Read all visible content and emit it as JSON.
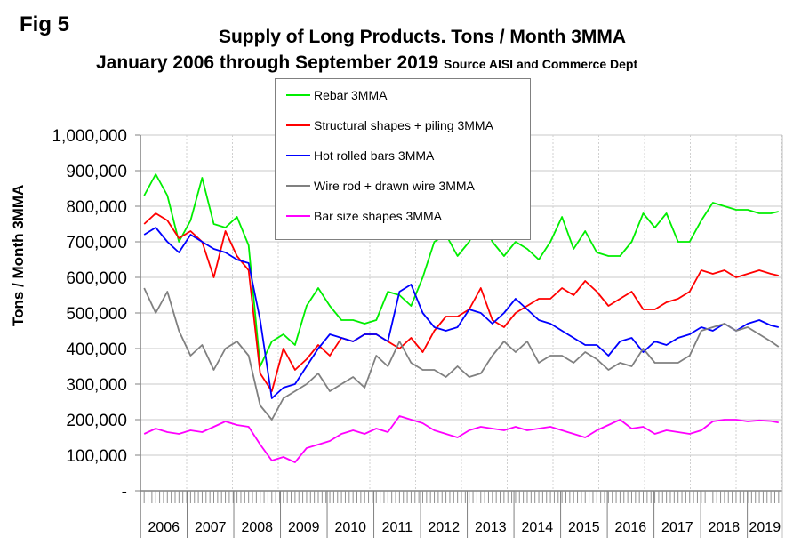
{
  "figure_label": "Fig 5",
  "chart_data": {
    "type": "line",
    "title": "Supply of Long Products. Tons / Month 3MMA",
    "subtitle": "January 2006 through September 2019",
    "source_note": "Source AISI and Commerce Dept",
    "xlabel": "",
    "ylabel": "Tons / Month 3MMA",
    "ylim": [
      0,
      1000000
    ],
    "y_ticks": [
      0,
      100000,
      200000,
      300000,
      400000,
      500000,
      600000,
      700000,
      800000,
      900000,
      1000000
    ],
    "y_tick_labels": [
      "-",
      "100,000",
      "200,000",
      "300,000",
      "400,000",
      "500,000",
      "600,000",
      "700,000",
      "800,000",
      "900,000",
      "1,000,000"
    ],
    "x_start": "2006-01",
    "x_end": "2019-09",
    "x_sample_interval_months": 3,
    "x_month_index": [
      0,
      3,
      6,
      9,
      12,
      15,
      18,
      21,
      24,
      27,
      30,
      33,
      36,
      39,
      42,
      45,
      48,
      51,
      54,
      57,
      60,
      63,
      66,
      69,
      72,
      75,
      78,
      81,
      84,
      87,
      90,
      93,
      96,
      99,
      102,
      105,
      108,
      111,
      114,
      117,
      120,
      123,
      126,
      129,
      132,
      135,
      138,
      141,
      144,
      147,
      150,
      153,
      156,
      159,
      162,
      164
    ],
    "categories": [
      "2006",
      "2007",
      "2008",
      "2009",
      "2010",
      "2011",
      "2012",
      "2013",
      "2014",
      "2015",
      "2016",
      "2017",
      "2018",
      "2019"
    ],
    "grid": true,
    "legend_position": "top-center",
    "series": [
      {
        "name": "Rebar 3MMA",
        "color": "#00ee00",
        "values": [
          830000,
          890000,
          830000,
          700000,
          760000,
          880000,
          750000,
          740000,
          770000,
          690000,
          350000,
          420000,
          440000,
          410000,
          520000,
          570000,
          520000,
          480000,
          480000,
          470000,
          480000,
          560000,
          550000,
          520000,
          600000,
          700000,
          720000,
          660000,
          700000,
          770000,
          700000,
          660000,
          700000,
          680000,
          650000,
          700000,
          770000,
          680000,
          730000,
          670000,
          660000,
          660000,
          700000,
          780000,
          740000,
          780000,
          700000,
          700000,
          760000,
          810000,
          800000,
          790000,
          790000,
          780000,
          780000,
          785000
        ]
      },
      {
        "name": "Structural shapes + piling 3MMA",
        "color": "#ff0000",
        "values": [
          750000,
          780000,
          760000,
          710000,
          730000,
          700000,
          600000,
          730000,
          660000,
          620000,
          330000,
          280000,
          400000,
          340000,
          370000,
          410000,
          380000,
          430000,
          420000,
          440000,
          440000,
          420000,
          400000,
          430000,
          390000,
          450000,
          490000,
          490000,
          510000,
          570000,
          480000,
          460000,
          500000,
          520000,
          540000,
          540000,
          570000,
          550000,
          590000,
          560000,
          520000,
          540000,
          560000,
          510000,
          510000,
          530000,
          540000,
          560000,
          620000,
          610000,
          620000,
          600000,
          610000,
          620000,
          610000,
          605000
        ]
      },
      {
        "name": "Hot rolled bars 3MMA",
        "color": "#0000ff",
        "values": [
          720000,
          740000,
          700000,
          670000,
          720000,
          700000,
          680000,
          670000,
          650000,
          640000,
          480000,
          260000,
          290000,
          300000,
          350000,
          400000,
          440000,
          430000,
          420000,
          440000,
          440000,
          420000,
          560000,
          580000,
          500000,
          460000,
          450000,
          460000,
          510000,
          500000,
          470000,
          500000,
          540000,
          510000,
          480000,
          470000,
          450000,
          430000,
          410000,
          410000,
          380000,
          420000,
          430000,
          390000,
          420000,
          410000,
          430000,
          440000,
          460000,
          450000,
          470000,
          450000,
          470000,
          480000,
          465000,
          460000
        ]
      },
      {
        "name": "Wire rod + drawn wire 3MMA",
        "color": "#808080",
        "values": [
          570000,
          500000,
          560000,
          450000,
          380000,
          410000,
          340000,
          400000,
          420000,
          380000,
          240000,
          200000,
          260000,
          280000,
          300000,
          330000,
          280000,
          300000,
          320000,
          290000,
          380000,
          350000,
          420000,
          360000,
          340000,
          340000,
          320000,
          350000,
          320000,
          330000,
          380000,
          420000,
          390000,
          420000,
          360000,
          380000,
          380000,
          360000,
          390000,
          370000,
          340000,
          360000,
          350000,
          400000,
          360000,
          360000,
          360000,
          380000,
          450000,
          460000,
          470000,
          450000,
          460000,
          440000,
          420000,
          405000
        ]
      },
      {
        "name": "Bar size shapes 3MMA",
        "color": "#ff00ff",
        "values": [
          160000,
          175000,
          165000,
          160000,
          170000,
          165000,
          180000,
          195000,
          185000,
          180000,
          130000,
          85000,
          95000,
          80000,
          120000,
          130000,
          140000,
          160000,
          170000,
          160000,
          175000,
          165000,
          210000,
          200000,
          190000,
          170000,
          160000,
          150000,
          170000,
          180000,
          175000,
          170000,
          180000,
          170000,
          175000,
          180000,
          170000,
          160000,
          150000,
          170000,
          185000,
          200000,
          175000,
          180000,
          160000,
          170000,
          165000,
          160000,
          170000,
          195000,
          200000,
          200000,
          195000,
          198000,
          196000,
          192000
        ]
      }
    ]
  }
}
